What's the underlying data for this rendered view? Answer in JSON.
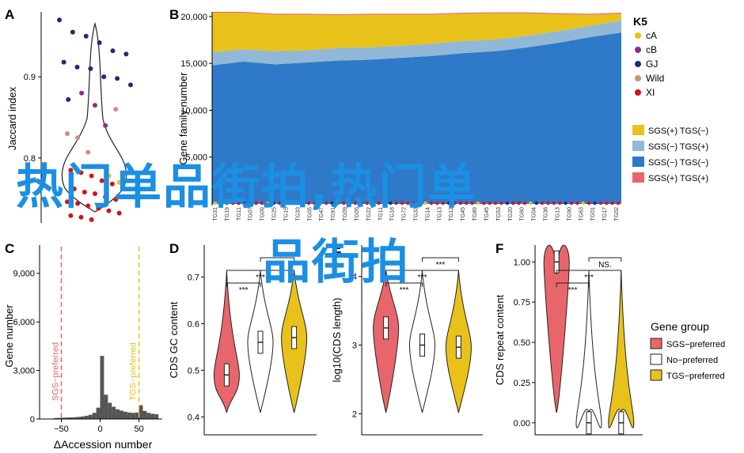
{
  "colors": {
    "red": "#e8666b",
    "yellow": "#e8c21a",
    "blue": "#2f79c9",
    "lightblue": "#91b8d6",
    "navy": "#1f2a78",
    "purple": "#8a2f8a",
    "tan": "#c9907e",
    "darkred": "#d4121b",
    "watermark": "#1a8fe3"
  },
  "panels": {
    "A": "A",
    "B": "B",
    "C": "C",
    "D": "D",
    "E": "E",
    "F": "F"
  },
  "watermark": {
    "line1": "热门单品街拍,热门单",
    "line2": "品街拍"
  },
  "chart_data": [
    {
      "panel": "A",
      "type": "violin_scatter",
      "ylabel": "Jaccard index",
      "yticks": [
        0.8,
        0.9
      ],
      "points": [
        {
          "group": "GJ",
          "y": 0.97
        },
        {
          "group": "GJ",
          "y": 0.955
        },
        {
          "group": "GJ",
          "y": 0.95
        },
        {
          "group": "GJ",
          "y": 0.942
        },
        {
          "group": "GJ",
          "y": 0.932
        },
        {
          "group": "GJ",
          "y": 0.928
        },
        {
          "group": "GJ",
          "y": 0.918
        },
        {
          "group": "GJ",
          "y": 0.912
        },
        {
          "group": "GJ",
          "y": 0.91
        },
        {
          "group": "GJ",
          "y": 0.9
        },
        {
          "group": "GJ",
          "y": 0.898
        },
        {
          "group": "GJ",
          "y": 0.89
        },
        {
          "group": "GJ",
          "y": 0.872
        },
        {
          "group": "cB",
          "y": 0.88
        },
        {
          "group": "cB",
          "y": 0.865
        },
        {
          "group": "cB",
          "y": 0.84
        },
        {
          "group": "Wild",
          "y": 0.86
        },
        {
          "group": "Wild",
          "y": 0.83
        },
        {
          "group": "Wild",
          "y": 0.825
        },
        {
          "group": "Wild",
          "y": 0.807
        },
        {
          "group": "cA",
          "y": 0.79
        },
        {
          "group": "cA",
          "y": 0.778
        },
        {
          "group": "cA",
          "y": 0.77
        },
        {
          "group": "XI",
          "y": 0.785
        },
        {
          "group": "XI",
          "y": 0.782
        },
        {
          "group": "XI",
          "y": 0.778
        },
        {
          "group": "XI",
          "y": 0.772
        },
        {
          "group": "XI",
          "y": 0.768
        },
        {
          "group": "XI",
          "y": 0.765
        },
        {
          "group": "XI",
          "y": 0.762
        },
        {
          "group": "XI",
          "y": 0.758
        },
        {
          "group": "XI",
          "y": 0.756
        },
        {
          "group": "XI",
          "y": 0.752
        },
        {
          "group": "XI",
          "y": 0.749
        },
        {
          "group": "XI",
          "y": 0.746
        },
        {
          "group": "XI",
          "y": 0.744
        },
        {
          "group": "XI",
          "y": 0.741
        },
        {
          "group": "XI",
          "y": 0.738
        },
        {
          "group": "XI",
          "y": 0.735
        },
        {
          "group": "XI",
          "y": 0.732
        },
        {
          "group": "XI",
          "y": 0.729
        },
        {
          "group": "XI",
          "y": 0.727
        },
        {
          "group": "XI",
          "y": 0.724
        }
      ]
    },
    {
      "panel": "B",
      "type": "stacked_area",
      "ylabel": "Gene family number",
      "yticks": [
        5000,
        10000,
        15000,
        20000
      ],
      "ytick_labels": [
        "5,000",
        "10,000",
        "15,000",
        "20,000"
      ],
      "ylim": [
        0,
        20500
      ],
      "series": [
        {
          "name": "SGS(−) TGS(−)",
          "color": "#2f79c9",
          "values": [
            14800,
            15200,
            14900,
            15100,
            15300,
            15400,
            15600,
            15800,
            16100,
            16300,
            16700,
            17200,
            17800,
            18300
          ]
        },
        {
          "name": "SGS(−) TGS(+)",
          "color": "#91b8d6",
          "values": [
            1400,
            1300,
            1400,
            1300,
            1350,
            1300,
            1300,
            1300,
            1300,
            1250,
            1250,
            1250,
            1200,
            1300
          ]
        },
        {
          "name": "SGS(+) TGS(−)",
          "color": "#e8c21a",
          "values": [
            4200,
            3900,
            3900,
            3800,
            3500,
            3500,
            3300,
            3100,
            2900,
            2800,
            2400,
            1800,
            1200,
            700
          ]
        },
        {
          "name": "SGS(+) TGS(+)",
          "color": "#e8666b",
          "values": [
            100,
            100,
            100,
            100,
            100,
            100,
            100,
            100,
            100,
            100,
            100,
            100,
            100,
            100
          ]
        }
      ],
      "legend": {
        "title": "K5",
        "entries": [
          {
            "name": "cA",
            "color": "#e8c21a"
          },
          {
            "name": "cB",
            "color": "#8a2f8a"
          },
          {
            "name": "GJ",
            "color": "#1f2a78"
          },
          {
            "name": "Wild",
            "color": "#c9907e"
          },
          {
            "name": "XI",
            "color": "#d4121b"
          }
        ]
      },
      "legend2": [
        "SGS(+) TGS(−)",
        "SGS(−) TGS(+)",
        "SGS(−) TGS(−)",
        "SGS(+) TGS(+)"
      ],
      "xtick_labels": [
        "TG31",
        "TG19",
        "TG11",
        "TG07",
        "TG09",
        "TG25",
        "TG15",
        "TG33",
        "TG05",
        "TG47",
        "TG91",
        "TG09",
        "TG05",
        "TG22",
        "TG11",
        "TG18",
        "TG72",
        "TG33",
        "TG14",
        "TG13",
        "TG12",
        "TG45",
        "TG89",
        "TG45",
        "TG53",
        "TG20",
        "TG60",
        "TG04",
        "TG36",
        "TG13",
        "TG90",
        "TG63",
        "TG01",
        "TG17",
        "TG02"
      ]
    },
    {
      "panel": "C",
      "type": "histogram",
      "ylabel": "Gene number",
      "xlabel": "ΔAccession number",
      "xticks": [
        -50,
        0,
        50
      ],
      "xtick_labels": [
        "−50",
        "0",
        "50"
      ],
      "yticks": [
        0,
        3000,
        6000,
        9000
      ],
      "ytick_labels": [
        "0",
        "3,000",
        "6,000",
        "9,000"
      ],
      "xlim": [
        -78,
        80
      ],
      "ylim": [
        0,
        10500
      ],
      "vlines": [
        {
          "x": -50,
          "label": "SGS−preferred",
          "color": "#e8666b"
        },
        {
          "x": 50,
          "label": "TGS−preferred",
          "color": "#e8c21a"
        }
      ],
      "bins_x": [
        -60,
        -55,
        -50,
        -45,
        -40,
        -35,
        -30,
        -25,
        -20,
        -15,
        -10,
        -5,
        0,
        5,
        10,
        15,
        20,
        25,
        30,
        35,
        40,
        45,
        50,
        55,
        60,
        65,
        70
      ],
      "bins_y": [
        60,
        70,
        80,
        90,
        100,
        110,
        130,
        160,
        200,
        260,
        380,
        700,
        3900,
        1500,
        1000,
        760,
        600,
        520,
        450,
        400,
        380,
        400,
        850,
        500,
        380,
        320,
        300
      ]
    },
    {
      "panel": "D",
      "type": "violin",
      "ylabel": "CDS GC content",
      "yticks": [
        0.4,
        0.5,
        0.6,
        0.7
      ],
      "ytick_labels": [
        "0.4",
        "0.5",
        "0.6",
        "0.7"
      ],
      "ylim": [
        0.37,
        0.76
      ],
      "groups": [
        {
          "name": "SGS−preferred",
          "median": 0.49
        },
        {
          "name": "No−preferred",
          "median": 0.56
        },
        {
          "name": "TGS−preferred",
          "median": 0.57
        }
      ],
      "significance": [
        "***",
        "***",
        "***"
      ]
    },
    {
      "panel": "E",
      "type": "violin",
      "ylabel": "log10(CDS length)",
      "yticks": [
        2,
        3,
        4
      ],
      "ytick_labels": [
        "2",
        "3",
        "4"
      ],
      "ylim": [
        1.75,
        4.4
      ],
      "groups": [
        {
          "name": "SGS−preferred",
          "median": 3.25
        },
        {
          "name": "No−preferred",
          "median": 3.0
        },
        {
          "name": "TGS−preferred",
          "median": 2.97
        }
      ],
      "significance": [
        "***",
        "***",
        "***"
      ]
    },
    {
      "panel": "F",
      "type": "violin",
      "ylabel": "CDS repeat content",
      "yticks": [
        0,
        0.25,
        0.5,
        0.75,
        1
      ],
      "ytick_labels": [
        "0.00",
        "0.25",
        "0.50",
        "0.75",
        "1.00"
      ],
      "ylim": [
        -0.05,
        1.08
      ],
      "groups": [
        {
          "name": "SGS−preferred",
          "median": 1.0
        },
        {
          "name": "No−preferred",
          "median": 0.0
        },
        {
          "name": "TGS−preferred",
          "median": 0.0
        }
      ],
      "significance": [
        "***",
        "***",
        "NS."
      ],
      "legend": {
        "title": "Gene group",
        "entries": [
          {
            "name": "SGS−preferred",
            "color": "#e8666b"
          },
          {
            "name": "No−preferred",
            "color": "#ffffff"
          },
          {
            "name": "TGS−preferred",
            "color": "#e8c21a"
          }
        ]
      }
    }
  ]
}
